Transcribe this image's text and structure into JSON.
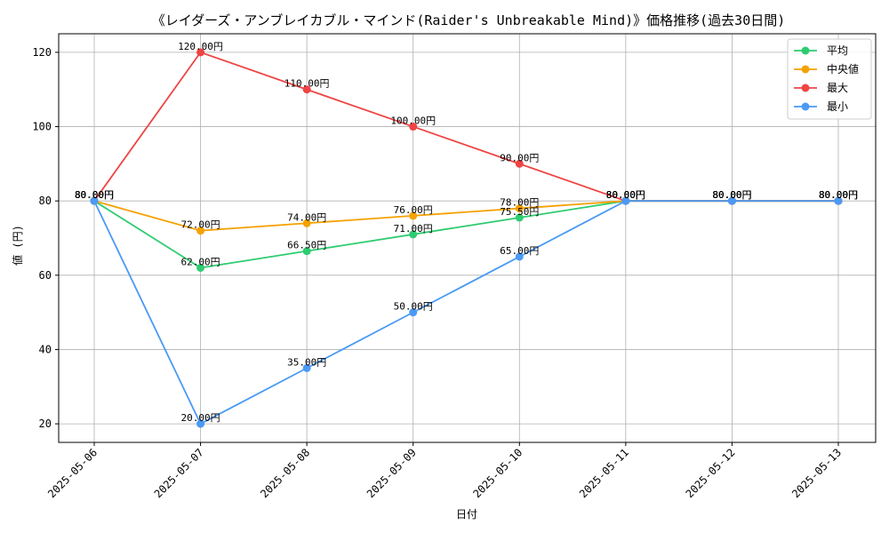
{
  "chart_data": {
    "type": "line",
    "title": "《レイダーズ・アンブレイカブル・マインド(Raider's Unbreakable Mind)》価格推移(過去30日間)",
    "xlabel": "日付",
    "ylabel": "値 (円)",
    "ylim": [
      15,
      125
    ],
    "yticks": [
      20,
      40,
      60,
      80,
      100,
      120
    ],
    "grid": true,
    "legend_position": "top-right",
    "categories": [
      "2025-05-06",
      "2025-05-07",
      "2025-05-08",
      "2025-05-09",
      "2025-05-10",
      "2025-05-11",
      "2025-05-12",
      "2025-05-13"
    ],
    "series": [
      {
        "name": "平均",
        "color": "#2ecc71",
        "values": [
          80,
          62,
          66.5,
          71,
          75.5,
          80,
          80,
          80
        ],
        "labels": [
          "80.00円",
          "62.00円",
          "66.50円",
          "71.00円",
          "75.50円",
          "80.00円",
          "80.00円",
          "80.00円"
        ]
      },
      {
        "name": "中央値",
        "color": "#f5a100",
        "values": [
          80,
          72,
          74,
          76,
          78,
          80,
          80,
          80
        ],
        "labels": [
          "80.00円",
          "72.00円",
          "74.00円",
          "76.00円",
          "78.00円",
          "80.00円",
          "80.00円",
          "80.00円"
        ]
      },
      {
        "name": "最大",
        "color": "#ef4444",
        "values": [
          80,
          120,
          110,
          100,
          90,
          80,
          80,
          80
        ],
        "labels": [
          "80.00円",
          "120.00円",
          "110.00円",
          "100.00円",
          "90.00円",
          "80.00円",
          "80.00円",
          "80.00円"
        ]
      },
      {
        "name": "最小",
        "color": "#4a9af5",
        "values": [
          80,
          20,
          35,
          50,
          65,
          80,
          80,
          80
        ],
        "labels": [
          "80.00円",
          "20.00円",
          "35.00円",
          "50.00円",
          "65.00円",
          "80.00円",
          "80.00円",
          "80.00円"
        ]
      }
    ]
  }
}
